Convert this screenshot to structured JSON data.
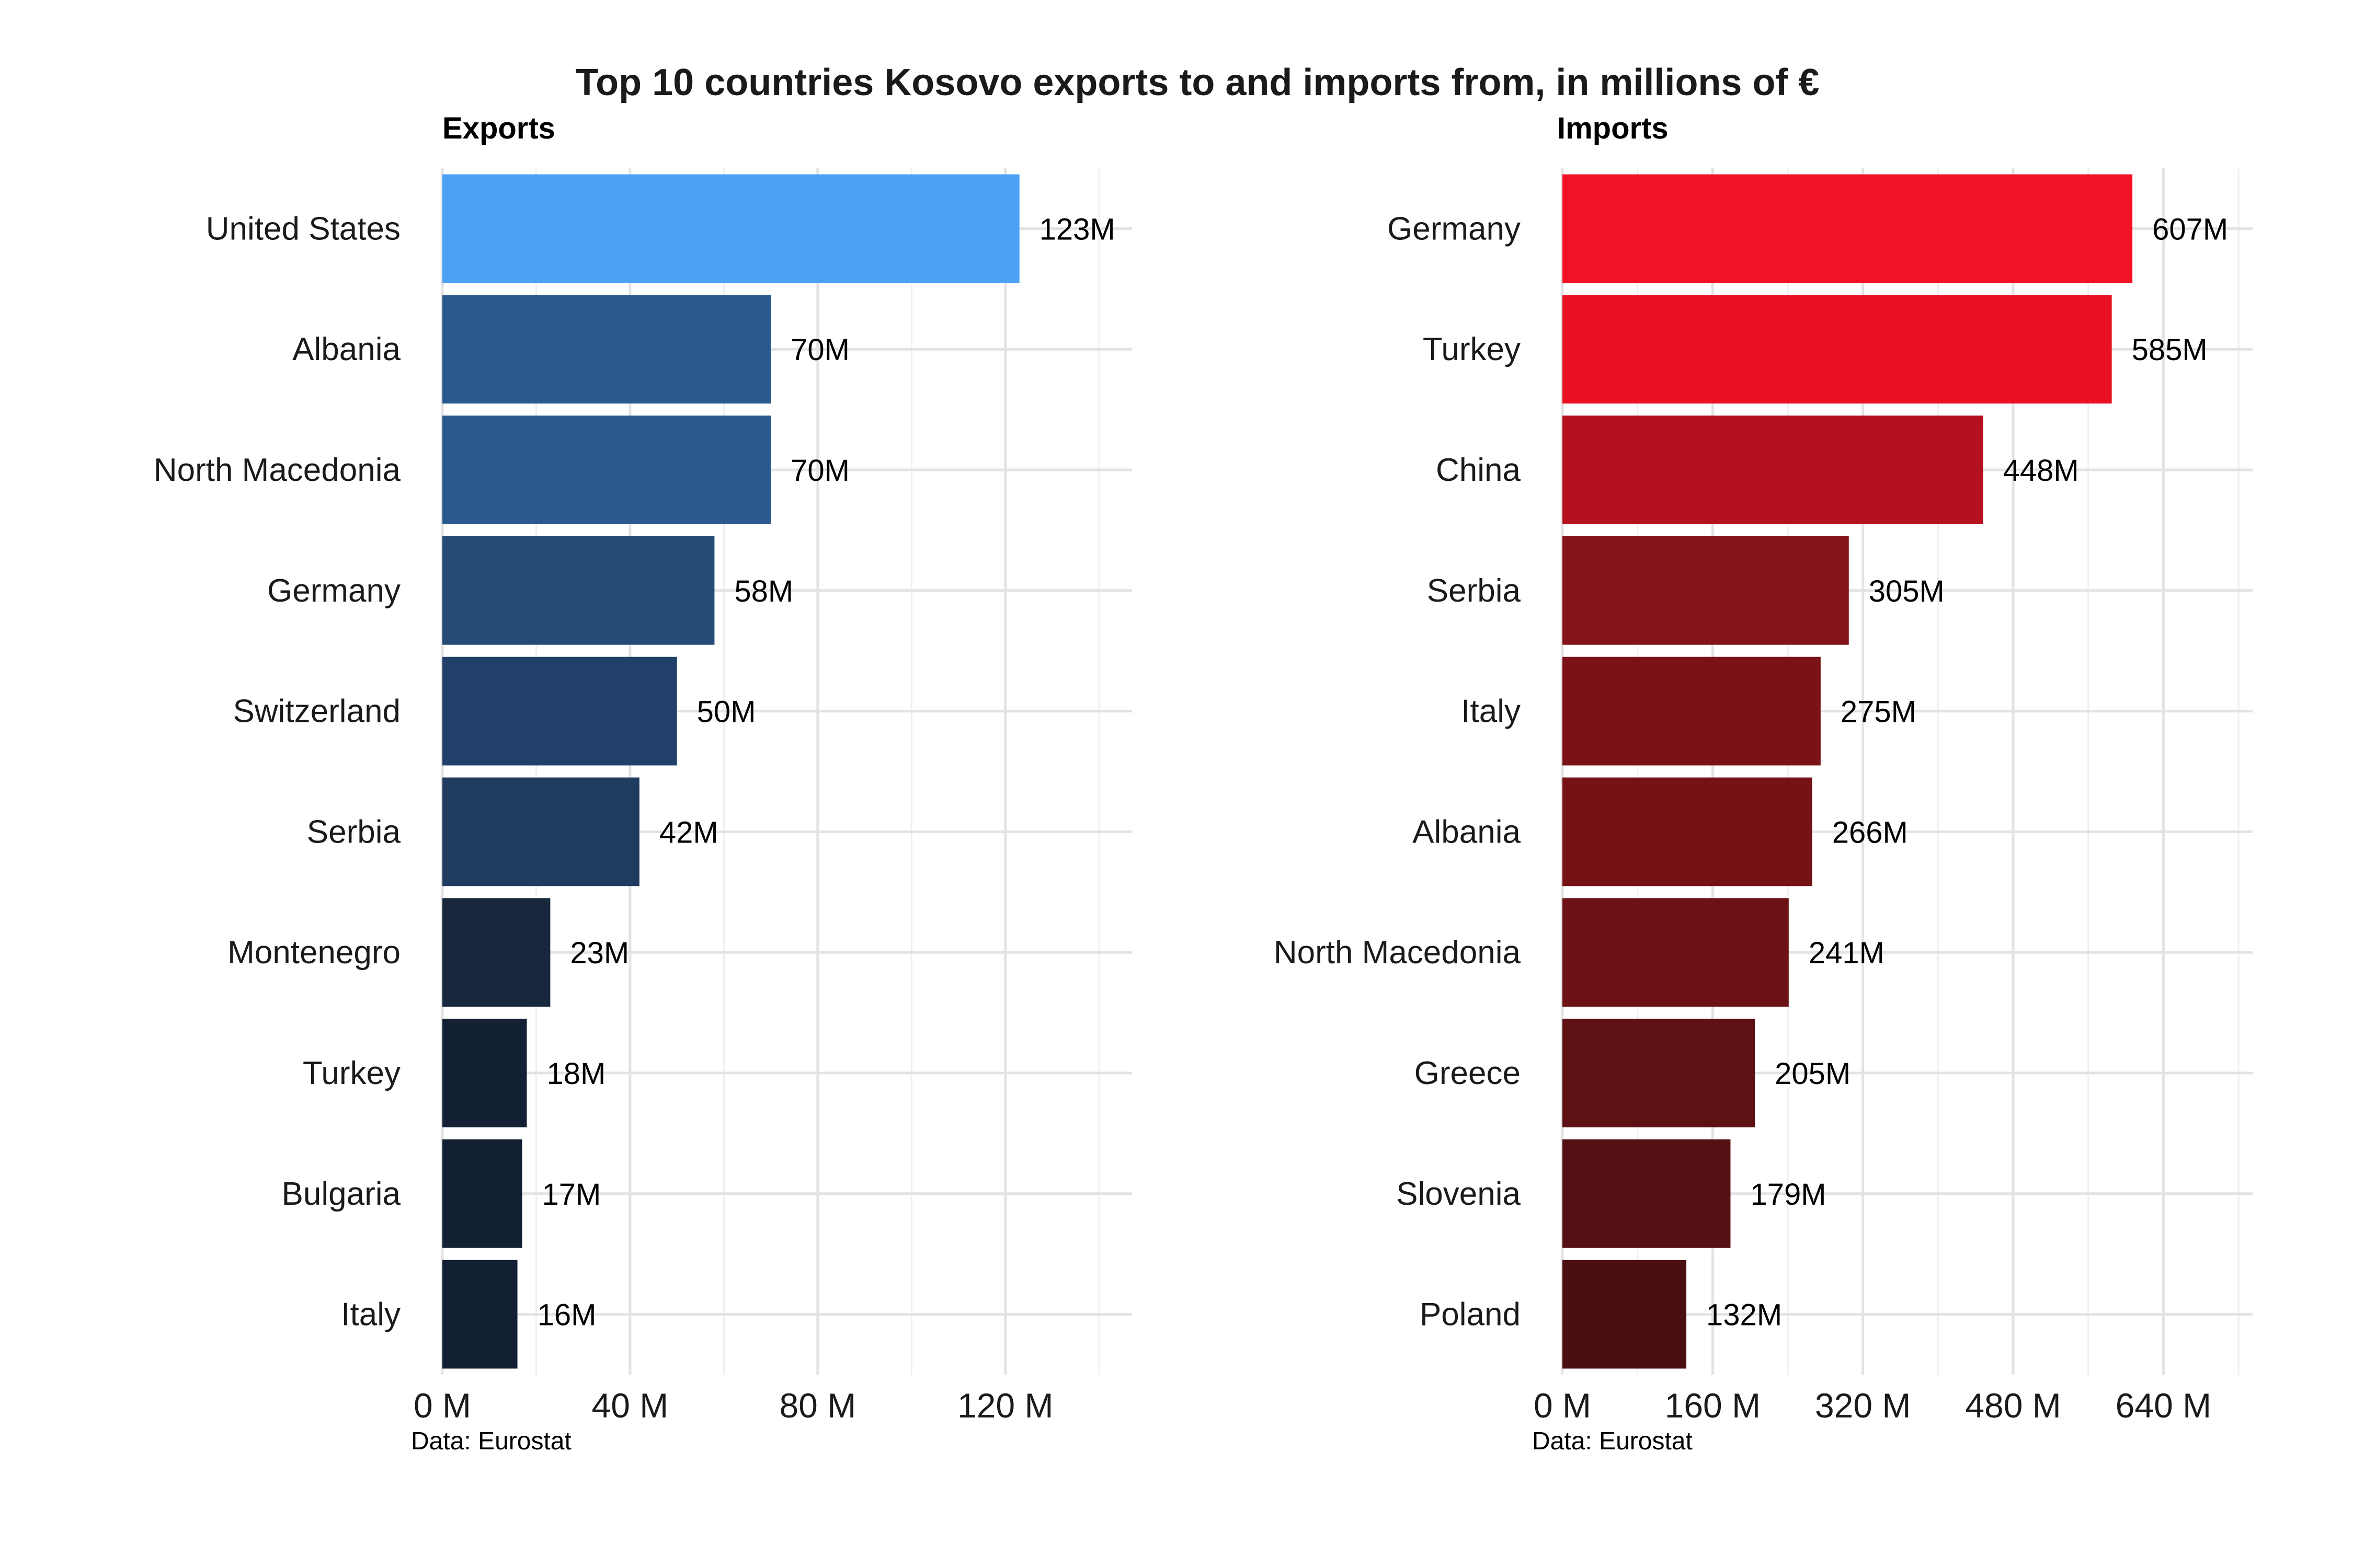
{
  "title": "Top 10 countries Kosovo exports to and imports from, in millions of €",
  "chart_data": [
    {
      "type": "bar",
      "orientation": "horizontal",
      "panel_title": "Exports",
      "caption": "Data: Eurostat",
      "categories": [
        "United States",
        "Albania",
        "North Macedonia",
        "Germany",
        "Switzerland",
        "Serbia",
        "Montenegro",
        "Turkey",
        "Bulgaria",
        "Italy"
      ],
      "values": [
        123,
        70,
        70,
        58,
        50,
        42,
        23,
        18,
        17,
        16
      ],
      "value_labels": [
        "123M",
        "70M",
        "70M",
        "58M",
        "50M",
        "42M",
        "23M",
        "18M",
        "17M",
        "16M"
      ],
      "colors": [
        "#4aa1f6",
        "#2a5a8d",
        "#2a5a8d",
        "#244b76",
        "#204069",
        "#1f3b5f",
        "#17273c",
        "#142135",
        "#132033",
        "#132033"
      ],
      "xlim": [
        0,
        147
      ],
      "xticks": [
        0,
        40,
        80,
        120
      ],
      "xtick_labels": [
        "0 M",
        "40 M",
        "80 M",
        "120 M"
      ],
      "grid": true
    },
    {
      "type": "bar",
      "orientation": "horizontal",
      "panel_title": "Imports",
      "caption": "Data: Eurostat",
      "categories": [
        "Germany",
        "Turkey",
        "China",
        "Serbia",
        "Italy",
        "Albania",
        "North Macedonia",
        "Greece",
        "Slovenia",
        "Poland"
      ],
      "values": [
        607,
        585,
        448,
        305,
        275,
        266,
        241,
        205,
        179,
        132
      ],
      "value_labels": [
        "607M",
        "585M",
        "448M",
        "305M",
        "275M",
        "266M",
        "241M",
        "205M",
        "179M",
        "132M"
      ],
      "colors": [
        "#f31126",
        "#ea1124",
        "#b3111e",
        "#831318",
        "#7a1217",
        "#741216",
        "#6c1115",
        "#5e1114",
        "#551013",
        "#4b0f12"
      ],
      "xlim": [
        0,
        735
      ],
      "xticks": [
        0,
        160,
        320,
        480,
        640
      ],
      "xtick_labels": [
        "0 M",
        "160 M",
        "320 M",
        "480 M",
        "640 M"
      ],
      "grid": true
    }
  ]
}
